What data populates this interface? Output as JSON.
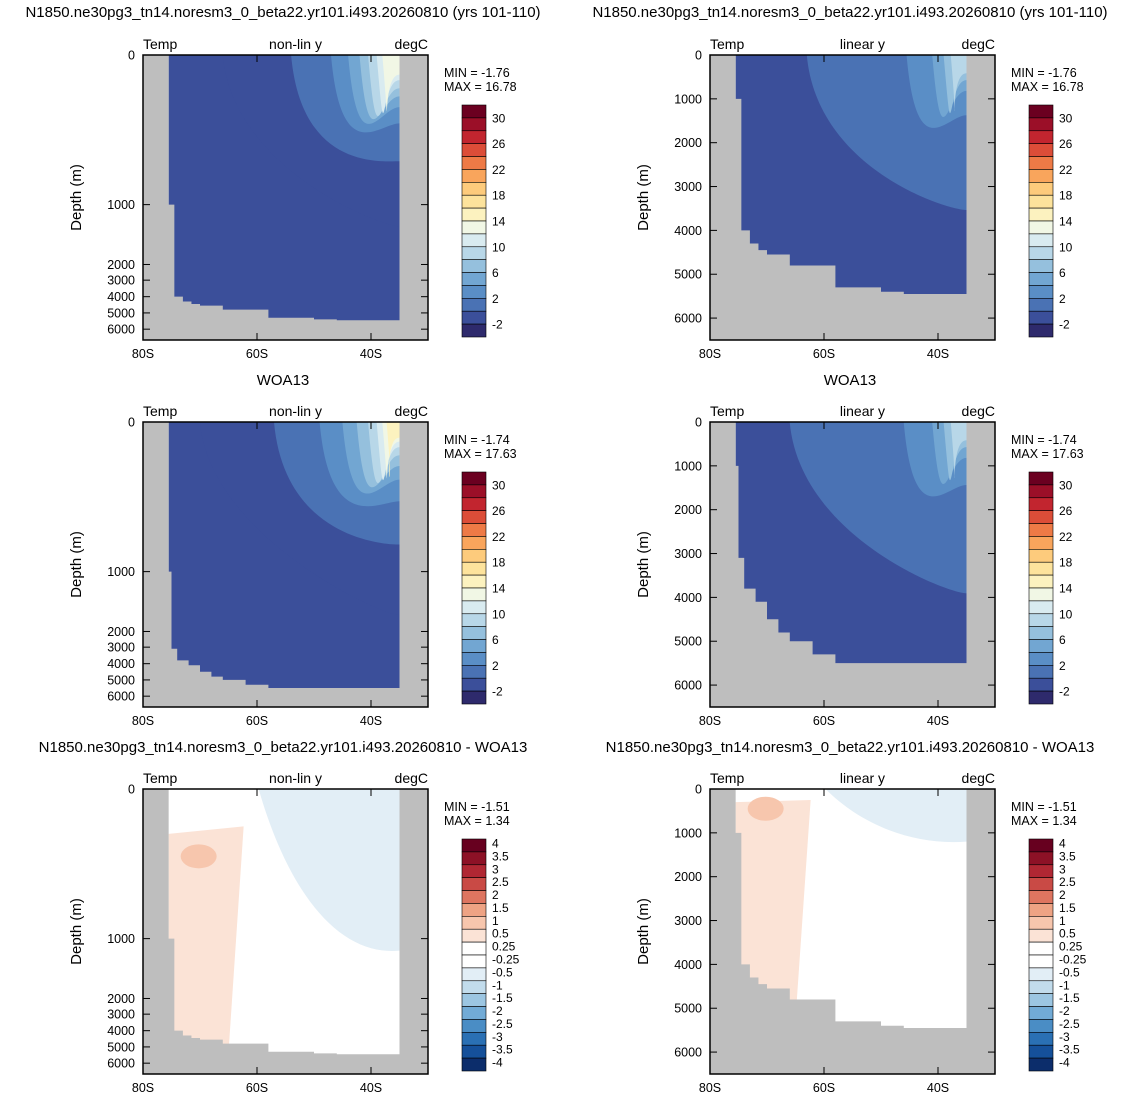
{
  "figure": {
    "row_titles": [
      [
        "N1850.ne30pg3_tn14.noresm3_0_beta22.yr101.i493.20260810 (yrs 101-110)",
        "N1850.ne30pg3_tn14.noresm3_0_beta22.yr101.i493.20260810 (yrs 101-110)"
      ],
      [
        "WOA13",
        "WOA13"
      ],
      [
        "N1850.ne30pg3_tn14.noresm3_0_beta22.yr101.i493.20260810 - WOA13",
        "N1850.ne30pg3_tn14.noresm3_0_beta22.yr101.i493.20260810 - WOA13"
      ]
    ],
    "colors": {
      "land": "#bebebe",
      "temp_scale": [
        "#2e2a6c",
        "#3b4f9a",
        "#4a72b4",
        "#5a8ec6",
        "#72a6d2",
        "#95c0dd",
        "#b8d7e8",
        "#d9ebf0",
        "#f1f7e5",
        "#fcf2bf",
        "#fde39c",
        "#fdcb7c",
        "#f9a55c",
        "#ee7a46",
        "#dc4d38",
        "#c2252f",
        "#9b0f28",
        "#6b0020"
      ],
      "diff_scale": [
        "#0c2d6b",
        "#15509a",
        "#2a70b4",
        "#4a8dc5",
        "#72abd6",
        "#9cc6e2",
        "#c2dcec",
        "#e2eef6",
        "#ffffff",
        "#ffffff",
        "#fbe3d6",
        "#f7c6ad",
        "#eea384",
        "#de7560",
        "#c94a45",
        "#b02733",
        "#8d1126",
        "#67001f"
      ]
    },
    "panels": [
      {
        "id": "model-nonlin",
        "left_label": "Temp",
        "center_label": "non-lin y",
        "right_label": "degC",
        "ylabel": "Depth (m)",
        "min_text": "MIN = -1.76",
        "max_text": "MAX = 16.78",
        "kind": "temp",
        "scale": "nonlin",
        "bathy": "model",
        "bands": [
          {
            "c": 1,
            "v": 0.42
          },
          {
            "c": 2,
            "v": 0.66
          },
          {
            "c": 3,
            "v": 0.8
          },
          {
            "c": 4,
            "v": 0.86
          },
          {
            "c": 5,
            "v": 0.9
          },
          {
            "c": 6,
            "v": 0.93
          },
          {
            "c": 7,
            "v": 0.96
          },
          {
            "c": 8,
            "v": 0.98
          }
        ]
      },
      {
        "id": "model-lin",
        "left_label": "Temp",
        "center_label": "linear y",
        "right_label": "degC",
        "ylabel": "Depth (m)",
        "min_text": "MIN = -1.76",
        "max_text": "MAX = 16.78",
        "kind": "temp",
        "scale": "lin",
        "bathy": "model",
        "bands": [
          {
            "c": 2,
            "v": 0.48
          },
          {
            "c": 3,
            "v": 0.83
          },
          {
            "c": 4,
            "v": 0.92
          },
          {
            "c": 5,
            "v": 0.96
          },
          {
            "c": 6,
            "v": 0.985
          }
        ]
      },
      {
        "id": "woa-nonlin",
        "left_label": "Temp",
        "center_label": "non-lin y",
        "right_label": "degC",
        "ylabel": "Depth (m)",
        "min_text": "MIN = -1.74",
        "max_text": "MAX = 17.63",
        "kind": "temp",
        "scale": "nonlin",
        "bathy": "woa",
        "bands": [
          {
            "c": 1,
            "v": 0.34
          },
          {
            "c": 2,
            "v": 0.6
          },
          {
            "c": 3,
            "v": 0.76
          },
          {
            "c": 4,
            "v": 0.84
          },
          {
            "c": 5,
            "v": 0.89
          },
          {
            "c": 6,
            "v": 0.93
          },
          {
            "c": 7,
            "v": 0.96
          },
          {
            "c": 8,
            "v": 0.98
          },
          {
            "c": 9,
            "v": 0.995
          }
        ]
      },
      {
        "id": "woa-lin",
        "left_label": "Temp",
        "center_label": "linear y",
        "right_label": "degC",
        "ylabel": "Depth (m)",
        "min_text": "MIN = -1.74",
        "max_text": "MAX = 17.63",
        "kind": "temp",
        "scale": "lin",
        "bathy": "woa",
        "bands": [
          {
            "c": 2,
            "v": 0.42
          },
          {
            "c": 3,
            "v": 0.82
          },
          {
            "c": 4,
            "v": 0.92
          },
          {
            "c": 5,
            "v": 0.96
          },
          {
            "c": 6,
            "v": 0.985
          }
        ]
      },
      {
        "id": "diff-nonlin",
        "left_label": "Temp",
        "center_label": "non-lin y",
        "right_label": "degC",
        "ylabel": "Depth (m)",
        "min_text": "MIN = -1.51",
        "max_text": "MAX =   1.34",
        "kind": "diff",
        "scale": "nonlin",
        "bathy": "model"
      },
      {
        "id": "diff-lin",
        "left_label": "Temp",
        "center_label": "linear y",
        "right_label": "degC",
        "ylabel": "Depth (m)",
        "min_text": "MIN = -1.51",
        "max_text": "MAX =   1.34",
        "kind": "diff",
        "scale": "lin",
        "bathy": "model"
      }
    ],
    "temp_colorbar_labels": [
      "30",
      "26",
      "22",
      "18",
      "14",
      "10",
      "6",
      "2",
      "-2"
    ],
    "diff_colorbar_labels": [
      "4",
      "3.5",
      "3",
      "2.5",
      "2",
      "1.5",
      "1",
      "0.5",
      "0.25",
      "-0.25",
      "-0.5",
      "-1",
      "-1.5",
      "-2",
      "-2.5",
      "-3",
      "-3.5",
      "-4"
    ],
    "xticks": [
      {
        "lat": -80,
        "label": "80S"
      },
      {
        "lat": -60,
        "label": "60S"
      },
      {
        "lat": -40,
        "label": "40S"
      }
    ],
    "yticks_nonlin": [
      {
        "depth": 0,
        "label": "0"
      },
      {
        "depth": 1000,
        "label": "1000"
      },
      {
        "depth": 2000,
        "label": "2000"
      },
      {
        "depth": 3000,
        "label": "3000"
      },
      {
        "depth": 4000,
        "label": "4000"
      },
      {
        "depth": 5000,
        "label": "5000"
      },
      {
        "depth": 6000,
        "label": "6000"
      }
    ],
    "yticks_lin": [
      {
        "depth": 0,
        "label": "0"
      },
      {
        "depth": 1000,
        "label": "1000"
      },
      {
        "depth": 2000,
        "label": "2000"
      },
      {
        "depth": 3000,
        "label": "3000"
      },
      {
        "depth": 4000,
        "label": "4000"
      },
      {
        "depth": 5000,
        "label": "5000"
      },
      {
        "depth": 6000,
        "label": "6000"
      }
    ]
  },
  "chart_data": [
    {
      "type": "heatmap",
      "title": "N1850.ne30pg3_tn14.noresm3_0_beta22.yr101.i493.20260810 (yrs 101-110)",
      "variable": "Temp",
      "units": "degC",
      "y_scale": "non-lin y",
      "ylabel": "Depth (m)",
      "xlim": [
        -80,
        -30
      ],
      "ylim": [
        6500,
        0
      ],
      "min": -1.76,
      "max": 16.78,
      "color_levels": [
        -2,
        0,
        2,
        4,
        6,
        8,
        10,
        12,
        14,
        16,
        18,
        20,
        22,
        24,
        26,
        28,
        30
      ]
    },
    {
      "type": "heatmap",
      "title": "N1850.ne30pg3_tn14.noresm3_0_beta22.yr101.i493.20260810 (yrs 101-110)",
      "variable": "Temp",
      "units": "degC",
      "y_scale": "linear y",
      "ylabel": "Depth (m)",
      "xlim": [
        -80,
        -30
      ],
      "ylim": [
        6500,
        0
      ],
      "min": -1.76,
      "max": 16.78,
      "color_levels": [
        -2,
        0,
        2,
        4,
        6,
        8,
        10,
        12,
        14,
        16,
        18,
        20,
        22,
        24,
        26,
        28,
        30
      ]
    },
    {
      "type": "heatmap",
      "title": "WOA13",
      "variable": "Temp",
      "units": "degC",
      "y_scale": "non-lin y",
      "ylabel": "Depth (m)",
      "xlim": [
        -80,
        -30
      ],
      "ylim": [
        6500,
        0
      ],
      "min": -1.74,
      "max": 17.63,
      "color_levels": [
        -2,
        0,
        2,
        4,
        6,
        8,
        10,
        12,
        14,
        16,
        18,
        20,
        22,
        24,
        26,
        28,
        30
      ]
    },
    {
      "type": "heatmap",
      "title": "WOA13",
      "variable": "Temp",
      "units": "degC",
      "y_scale": "linear y",
      "ylabel": "Depth (m)",
      "xlim": [
        -80,
        -30
      ],
      "ylim": [
        6500,
        0
      ],
      "min": -1.74,
      "max": 17.63,
      "color_levels": [
        -2,
        0,
        2,
        4,
        6,
        8,
        10,
        12,
        14,
        16,
        18,
        20,
        22,
        24,
        26,
        28,
        30
      ]
    },
    {
      "type": "heatmap",
      "title": "N1850.ne30pg3_tn14.noresm3_0_beta22.yr101.i493.20260810 - WOA13",
      "variable": "Temp",
      "units": "degC",
      "y_scale": "non-lin y",
      "ylabel": "Depth (m)",
      "xlim": [
        -80,
        -30
      ],
      "ylim": [
        6500,
        0
      ],
      "min": -1.51,
      "max": 1.34,
      "color_levels": [
        -4,
        -3.5,
        -3,
        -2.5,
        -2,
        -1.5,
        -1,
        -0.5,
        -0.25,
        0.25,
        0.5,
        1,
        1.5,
        2,
        2.5,
        3,
        3.5,
        4
      ]
    },
    {
      "type": "heatmap",
      "title": "N1850.ne30pg3_tn14.noresm3_0_beta22.yr101.i493.20260810 - WOA13",
      "variable": "Temp",
      "units": "degC",
      "y_scale": "linear y",
      "ylabel": "Depth (m)",
      "xlim": [
        -80,
        -30
      ],
      "ylim": [
        6500,
        0
      ],
      "min": -1.51,
      "max": 1.34,
      "color_levels": [
        -4,
        -3.5,
        -3,
        -2.5,
        -2,
        -1.5,
        -1,
        -0.5,
        -0.25,
        0.25,
        0.5,
        1,
        1.5,
        2,
        2.5,
        3,
        3.5,
        4
      ]
    }
  ]
}
